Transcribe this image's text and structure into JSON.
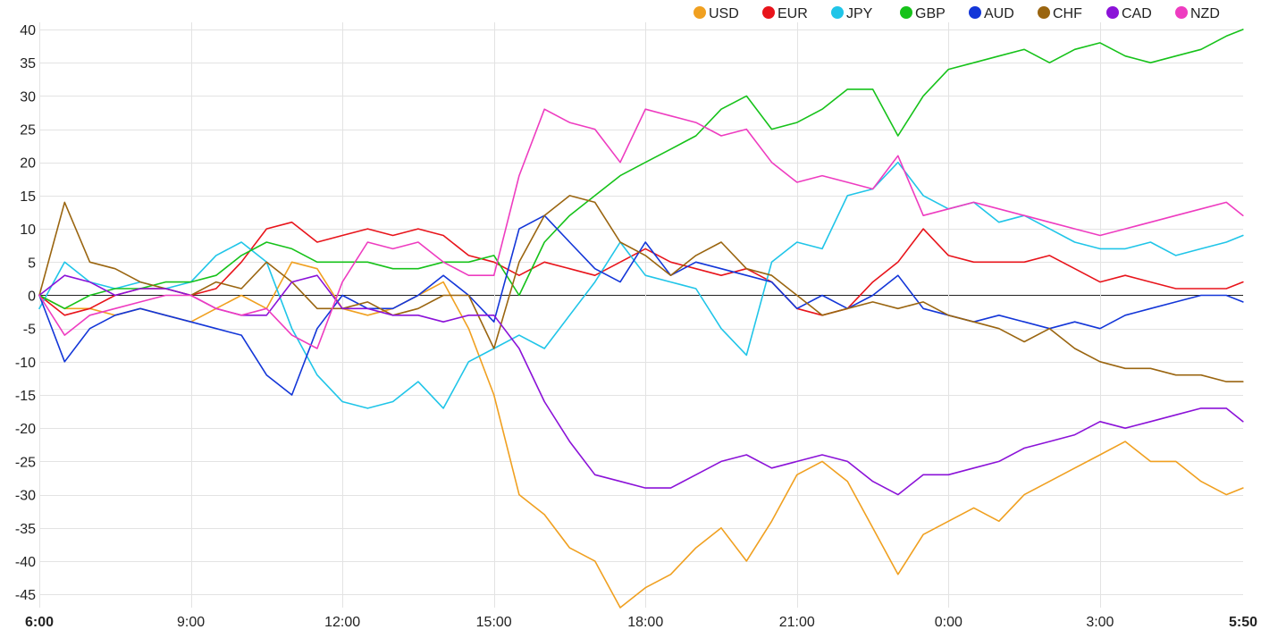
{
  "chart_data": {
    "type": "line",
    "title": "",
    "xlabel": "",
    "ylabel": "",
    "ylim": [
      -47,
      40
    ],
    "y_ticks": [
      40,
      35,
      30,
      25,
      20,
      15,
      10,
      5,
      0,
      -5,
      -10,
      -15,
      -20,
      -25,
      -30,
      -35,
      -40,
      -45
    ],
    "x_ticks": [
      {
        "label": "6:00",
        "hours": 0,
        "bold": true
      },
      {
        "label": "9:00",
        "hours": 3
      },
      {
        "label": "12:00",
        "hours": 6
      },
      {
        "label": "15:00",
        "hours": 9
      },
      {
        "label": "18:00",
        "hours": 12
      },
      {
        "label": "21:00",
        "hours": 15
      },
      {
        "label": "0:00",
        "hours": 18
      },
      {
        "label": "3:00",
        "hours": 21
      },
      {
        "label": "5:50",
        "hours": 23.833,
        "bold": true
      }
    ],
    "x_unit": "hours after 6:00",
    "grid": true,
    "legend_position": "top-right",
    "series": [
      {
        "name": "USD",
        "color": "#f0a020",
        "x": [
          0,
          0.5,
          1,
          1.5,
          2,
          2.5,
          3,
          3.5,
          4,
          4.5,
          5,
          5.5,
          6,
          6.5,
          7,
          7.5,
          8,
          8.5,
          9,
          9.5,
          10,
          10.5,
          11,
          11.5,
          12,
          12.5,
          13,
          13.5,
          14,
          14.5,
          15,
          15.5,
          16,
          16.5,
          17,
          17.5,
          18,
          18.5,
          19,
          19.5,
          20,
          20.5,
          21,
          21.5,
          22,
          22.5,
          23,
          23.5,
          23.83
        ],
        "values": [
          0,
          -2,
          -2,
          -3,
          -2,
          -3,
          -4,
          -2,
          0,
          -2,
          5,
          4,
          -2,
          -3,
          -2,
          0,
          2,
          -5,
          -15,
          -30,
          -33,
          -38,
          -40,
          -47,
          -44,
          -42,
          -38,
          -35,
          -40,
          -34,
          -27,
          -25,
          -28,
          -35,
          -42,
          -36,
          -34,
          -32,
          -34,
          -30,
          -28,
          -26,
          -24,
          -22,
          -25,
          -25,
          -28,
          -30,
          -29
        ]
      },
      {
        "name": "EUR",
        "color": "#e8141b",
        "x": [
          0,
          0.5,
          1,
          1.5,
          2,
          2.5,
          3,
          3.5,
          4,
          4.5,
          5,
          5.5,
          6,
          6.5,
          7,
          7.5,
          8,
          8.5,
          9,
          9.5,
          10,
          10.5,
          11,
          11.5,
          12,
          12.5,
          13,
          13.5,
          14,
          14.5,
          15,
          15.5,
          16,
          16.5,
          17,
          17.5,
          18,
          18.5,
          19,
          19.5,
          20,
          20.5,
          21,
          21.5,
          22,
          22.5,
          23,
          23.5,
          23.83
        ],
        "values": [
          0,
          -3,
          -2,
          0,
          1,
          1,
          0,
          1,
          5,
          10,
          11,
          8,
          9,
          10,
          9,
          10,
          9,
          6,
          5,
          3,
          5,
          4,
          3,
          5,
          7,
          5,
          4,
          3,
          4,
          2,
          -2,
          -3,
          -2,
          2,
          5,
          10,
          6,
          5,
          5,
          5,
          6,
          4,
          2,
          3,
          2,
          1,
          1,
          1,
          2
        ]
      },
      {
        "name": "JPY",
        "color": "#20c5e8",
        "x": [
          0,
          0.5,
          1,
          1.5,
          2,
          2.5,
          3,
          3.5,
          4,
          4.5,
          5,
          5.5,
          6,
          6.5,
          7,
          7.5,
          8,
          8.5,
          9,
          9.5,
          10,
          10.5,
          11,
          11.5,
          12,
          12.5,
          13,
          13.5,
          14,
          14.5,
          15,
          15.5,
          16,
          16.5,
          17,
          17.5,
          18,
          18.5,
          19,
          19.5,
          20,
          20.5,
          21,
          21.5,
          22,
          22.5,
          23,
          23.5,
          23.83
        ],
        "values": [
          -2,
          5,
          2,
          1,
          2,
          1,
          2,
          6,
          8,
          5,
          -5,
          -12,
          -16,
          -17,
          -16,
          -13,
          -17,
          -10,
          -8,
          -6,
          -8,
          -3,
          2,
          8,
          3,
          2,
          1,
          -5,
          -9,
          5,
          8,
          7,
          15,
          16,
          20,
          15,
          13,
          14,
          11,
          12,
          10,
          8,
          7,
          7,
          8,
          6,
          7,
          8,
          9
        ]
      },
      {
        "name": "GBP",
        "color": "#16c21a",
        "x": [
          0,
          0.5,
          1,
          1.5,
          2,
          2.5,
          3,
          3.5,
          4,
          4.5,
          5,
          5.5,
          6,
          6.5,
          7,
          7.5,
          8,
          8.5,
          9,
          9.5,
          10,
          10.5,
          11,
          11.5,
          12,
          12.5,
          13,
          13.5,
          14,
          14.5,
          15,
          15.5,
          16,
          16.5,
          17,
          17.5,
          18,
          18.5,
          19,
          19.5,
          20,
          20.5,
          21,
          21.5,
          22,
          22.5,
          23,
          23.5,
          23.83
        ],
        "values": [
          0,
          -2,
          0,
          1,
          1,
          2,
          2,
          3,
          6,
          8,
          7,
          5,
          5,
          5,
          4,
          4,
          5,
          5,
          6,
          0,
          8,
          12,
          15,
          18,
          20,
          22,
          24,
          28,
          30,
          25,
          26,
          28,
          31,
          31,
          24,
          30,
          34,
          35,
          36,
          37,
          35,
          37,
          38,
          36,
          35,
          36,
          37,
          39,
          40
        ]
      },
      {
        "name": "AUD",
        "color": "#1336d8",
        "x": [
          0,
          0.5,
          1,
          1.5,
          2,
          2.5,
          3,
          3.5,
          4,
          4.5,
          5,
          5.5,
          6,
          6.5,
          7,
          7.5,
          8,
          8.5,
          9,
          9.5,
          10,
          10.5,
          11,
          11.5,
          12,
          12.5,
          13,
          13.5,
          14,
          14.5,
          15,
          15.5,
          16,
          16.5,
          17,
          17.5,
          18,
          18.5,
          19,
          19.5,
          20,
          20.5,
          21,
          21.5,
          22,
          22.5,
          23,
          23.5,
          23.83
        ],
        "values": [
          0,
          -10,
          -5,
          -3,
          -2,
          -3,
          -4,
          -5,
          -6,
          -12,
          -15,
          -5,
          0,
          -2,
          -2,
          0,
          3,
          0,
          -4,
          10,
          12,
          8,
          4,
          2,
          8,
          3,
          5,
          4,
          3,
          2,
          -2,
          0,
          -2,
          0,
          3,
          -2,
          -3,
          -4,
          -3,
          -4,
          -5,
          -4,
          -5,
          -3,
          -2,
          -1,
          0,
          0,
          -1
        ]
      },
      {
        "name": "CHF",
        "color": "#9a6510",
        "x": [
          0,
          0.5,
          1,
          1.5,
          2,
          2.5,
          3,
          3.5,
          4,
          4.5,
          5,
          5.5,
          6,
          6.5,
          7,
          7.5,
          8,
          8.5,
          9,
          9.5,
          10,
          10.5,
          11,
          11.5,
          12,
          12.5,
          13,
          13.5,
          14,
          14.5,
          15,
          15.5,
          16,
          16.5,
          17,
          17.5,
          18,
          18.5,
          19,
          19.5,
          20,
          20.5,
          21,
          21.5,
          22,
          22.5,
          23,
          23.5,
          23.83
        ],
        "values": [
          0,
          14,
          5,
          4,
          2,
          1,
          0,
          2,
          1,
          5,
          2,
          -2,
          -2,
          -1,
          -3,
          -2,
          0,
          0,
          -8,
          5,
          12,
          15,
          14,
          8,
          6,
          3,
          6,
          8,
          4,
          3,
          0,
          -3,
          -2,
          -1,
          -2,
          -1,
          -3,
          -4,
          -5,
          -7,
          -5,
          -8,
          -10,
          -11,
          -11,
          -12,
          -12,
          -13,
          -13
        ]
      },
      {
        "name": "CAD",
        "color": "#8b12d8",
        "x": [
          0,
          0.5,
          1,
          1.5,
          2,
          2.5,
          3,
          3.5,
          4,
          4.5,
          5,
          5.5,
          6,
          6.5,
          7,
          7.5,
          8,
          8.5,
          9,
          9.5,
          10,
          10.5,
          11,
          11.5,
          12,
          12.5,
          13,
          13.5,
          14,
          14.5,
          15,
          15.5,
          16,
          16.5,
          17,
          17.5,
          18,
          18.5,
          19,
          19.5,
          20,
          20.5,
          21,
          21.5,
          22,
          22.5,
          23,
          23.5,
          23.83
        ],
        "values": [
          0,
          3,
          2,
          0,
          1,
          1,
          0,
          -2,
          -3,
          -3,
          2,
          3,
          -2,
          -2,
          -3,
          -3,
          -4,
          -3,
          -3,
          -8,
          -16,
          -22,
          -27,
          -28,
          -29,
          -29,
          -27,
          -25,
          -24,
          -26,
          -25,
          -24,
          -25,
          -28,
          -30,
          -27,
          -27,
          -26,
          -25,
          -23,
          -22,
          -21,
          -19,
          -20,
          -19,
          -18,
          -17,
          -17,
          -19
        ]
      },
      {
        "name": "NZD",
        "color": "#ee3cc0",
        "x": [
          0,
          0.5,
          1,
          1.5,
          2,
          2.5,
          3,
          3.5,
          4,
          4.5,
          5,
          5.5,
          6,
          6.5,
          7,
          7.5,
          8,
          8.5,
          9,
          9.5,
          10,
          10.5,
          11,
          11.5,
          12,
          12.5,
          13,
          13.5,
          14,
          14.5,
          15,
          15.5,
          16,
          16.5,
          17,
          17.5,
          18,
          18.5,
          19,
          19.5,
          20,
          20.5,
          21,
          21.5,
          22,
          22.5,
          23,
          23.5,
          23.83
        ],
        "values": [
          0,
          -6,
          -3,
          -2,
          -1,
          0,
          0,
          -2,
          -3,
          -2,
          -6,
          -8,
          2,
          8,
          7,
          8,
          5,
          3,
          3,
          18,
          28,
          26,
          25,
          20,
          28,
          27,
          26,
          24,
          25,
          20,
          17,
          18,
          17,
          16,
          21,
          12,
          13,
          14,
          13,
          12,
          11,
          10,
          9,
          10,
          11,
          12,
          13,
          14,
          12
        ]
      }
    ]
  }
}
